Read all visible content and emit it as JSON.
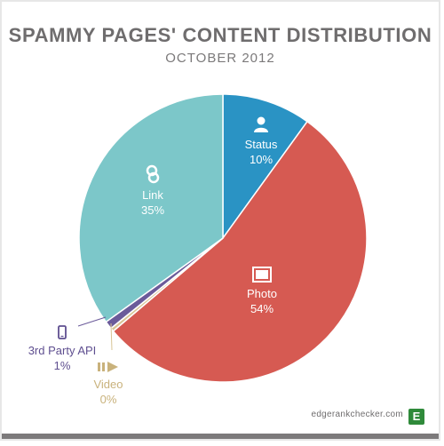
{
  "chart_data": {
    "type": "pie",
    "title": "SPAMMY PAGES' CONTENT DISTRIBUTION",
    "subtitle": "OCTOBER 2012",
    "slices": [
      {
        "label": "Status",
        "value": 10,
        "value_label": "10%",
        "color": "#2a93c4",
        "icon": "person-icon"
      },
      {
        "label": "Photo",
        "value": 54,
        "value_label": "54%",
        "color": "#d65a52",
        "icon": "photo-icon"
      },
      {
        "label": "Video",
        "value": 0.4,
        "value_label": "0%",
        "color": "#d8c596",
        "icon": "video-icon"
      },
      {
        "label": "3rd Party API",
        "value": 0.9,
        "value_label": "1%",
        "color": "#6b5b9a",
        "icon": "phone-icon"
      },
      {
        "label": "Link",
        "value": 35,
        "value_label": "35%",
        "color": "#7cc7c9",
        "icon": "link-icon"
      }
    ]
  },
  "footer": {
    "url": "edgerankchecker.com",
    "logo_letter": "E",
    "logo_color": "#2f8a3a"
  }
}
